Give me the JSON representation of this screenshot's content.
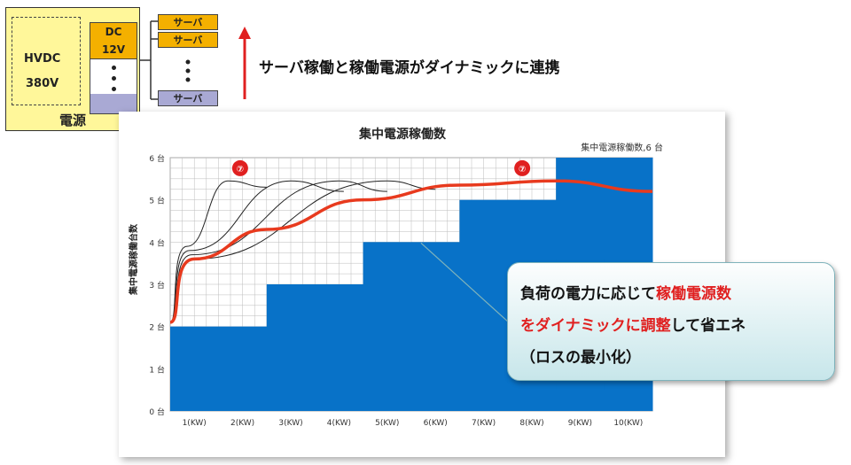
{
  "diagram": {
    "psu_label": "電源",
    "hvdc_label": "HVDC",
    "input_voltage": "380V",
    "dc_label": "DC",
    "dc_voltage": "12V",
    "servers": [
      "サーバ",
      "サーバ",
      "サーバ"
    ],
    "arrow_text": "サーバ稼働と稼働電源がダイナミックに連携",
    "colors": {
      "psu": "#fff79a",
      "dc": "#f4b000",
      "server_blue": "#a9a9d4",
      "arrow": "#e02020"
    }
  },
  "callout": {
    "line1_a": "負荷の電力に応じて",
    "line1_b": "稼働電源数",
    "line2_a": "をダイナミックに調整",
    "line2_b": "して省エネ",
    "line3": "（ロスの最小化）"
  },
  "chart_data": {
    "type": "area",
    "title": "集中電源稼働数",
    "legend": "集中電源稼働数,6 台",
    "ylabel": "集中電源稼働台数",
    "y_ticks": [
      "0 台",
      "1 台",
      "2 台",
      "3 台",
      "4 台",
      "5 台",
      "6 台"
    ],
    "ylim": [
      0,
      6
    ],
    "categories": [
      "1(KW)",
      "2(KW)",
      "3(KW)",
      "4(KW)",
      "5(KW)",
      "6(KW)",
      "7(KW)",
      "8(KW)",
      "9(KW)",
      "10(KW)"
    ],
    "series": [
      {
        "values": [
          2,
          2,
          3,
          3,
          4,
          4,
          5,
          5,
          6,
          6
        ]
      }
    ],
    "load_curve": [
      [
        0,
        2.1
      ],
      [
        0.5,
        3.6
      ],
      [
        2,
        4.3
      ],
      [
        4,
        5.0
      ],
      [
        6,
        5.35
      ],
      [
        8,
        5.45
      ],
      [
        10,
        5.2
      ]
    ],
    "overshoot_curves": [
      [
        [
          0,
          2.1
        ],
        [
          0.35,
          3.9
        ],
        [
          1.2,
          5.45
        ],
        [
          2,
          5.3
        ]
      ],
      [
        [
          0,
          2.1
        ],
        [
          0.4,
          3.8
        ],
        [
          2.5,
          5.45
        ],
        [
          3.6,
          5.2
        ]
      ],
      [
        [
          0,
          2.1
        ],
        [
          0.45,
          3.7
        ],
        [
          3.5,
          5.45
        ],
        [
          4.5,
          5.2
        ]
      ],
      [
        [
          0,
          2.1
        ],
        [
          0.5,
          3.6
        ],
        [
          4.5,
          5.45
        ],
        [
          5.5,
          5.25
        ]
      ]
    ],
    "flag_marks": [
      "⑦",
      "⑦"
    ],
    "grid": true,
    "colors": {
      "area": "#0872c8",
      "load_curve": "#e83a1e",
      "grid": "#bbbbbb"
    }
  }
}
